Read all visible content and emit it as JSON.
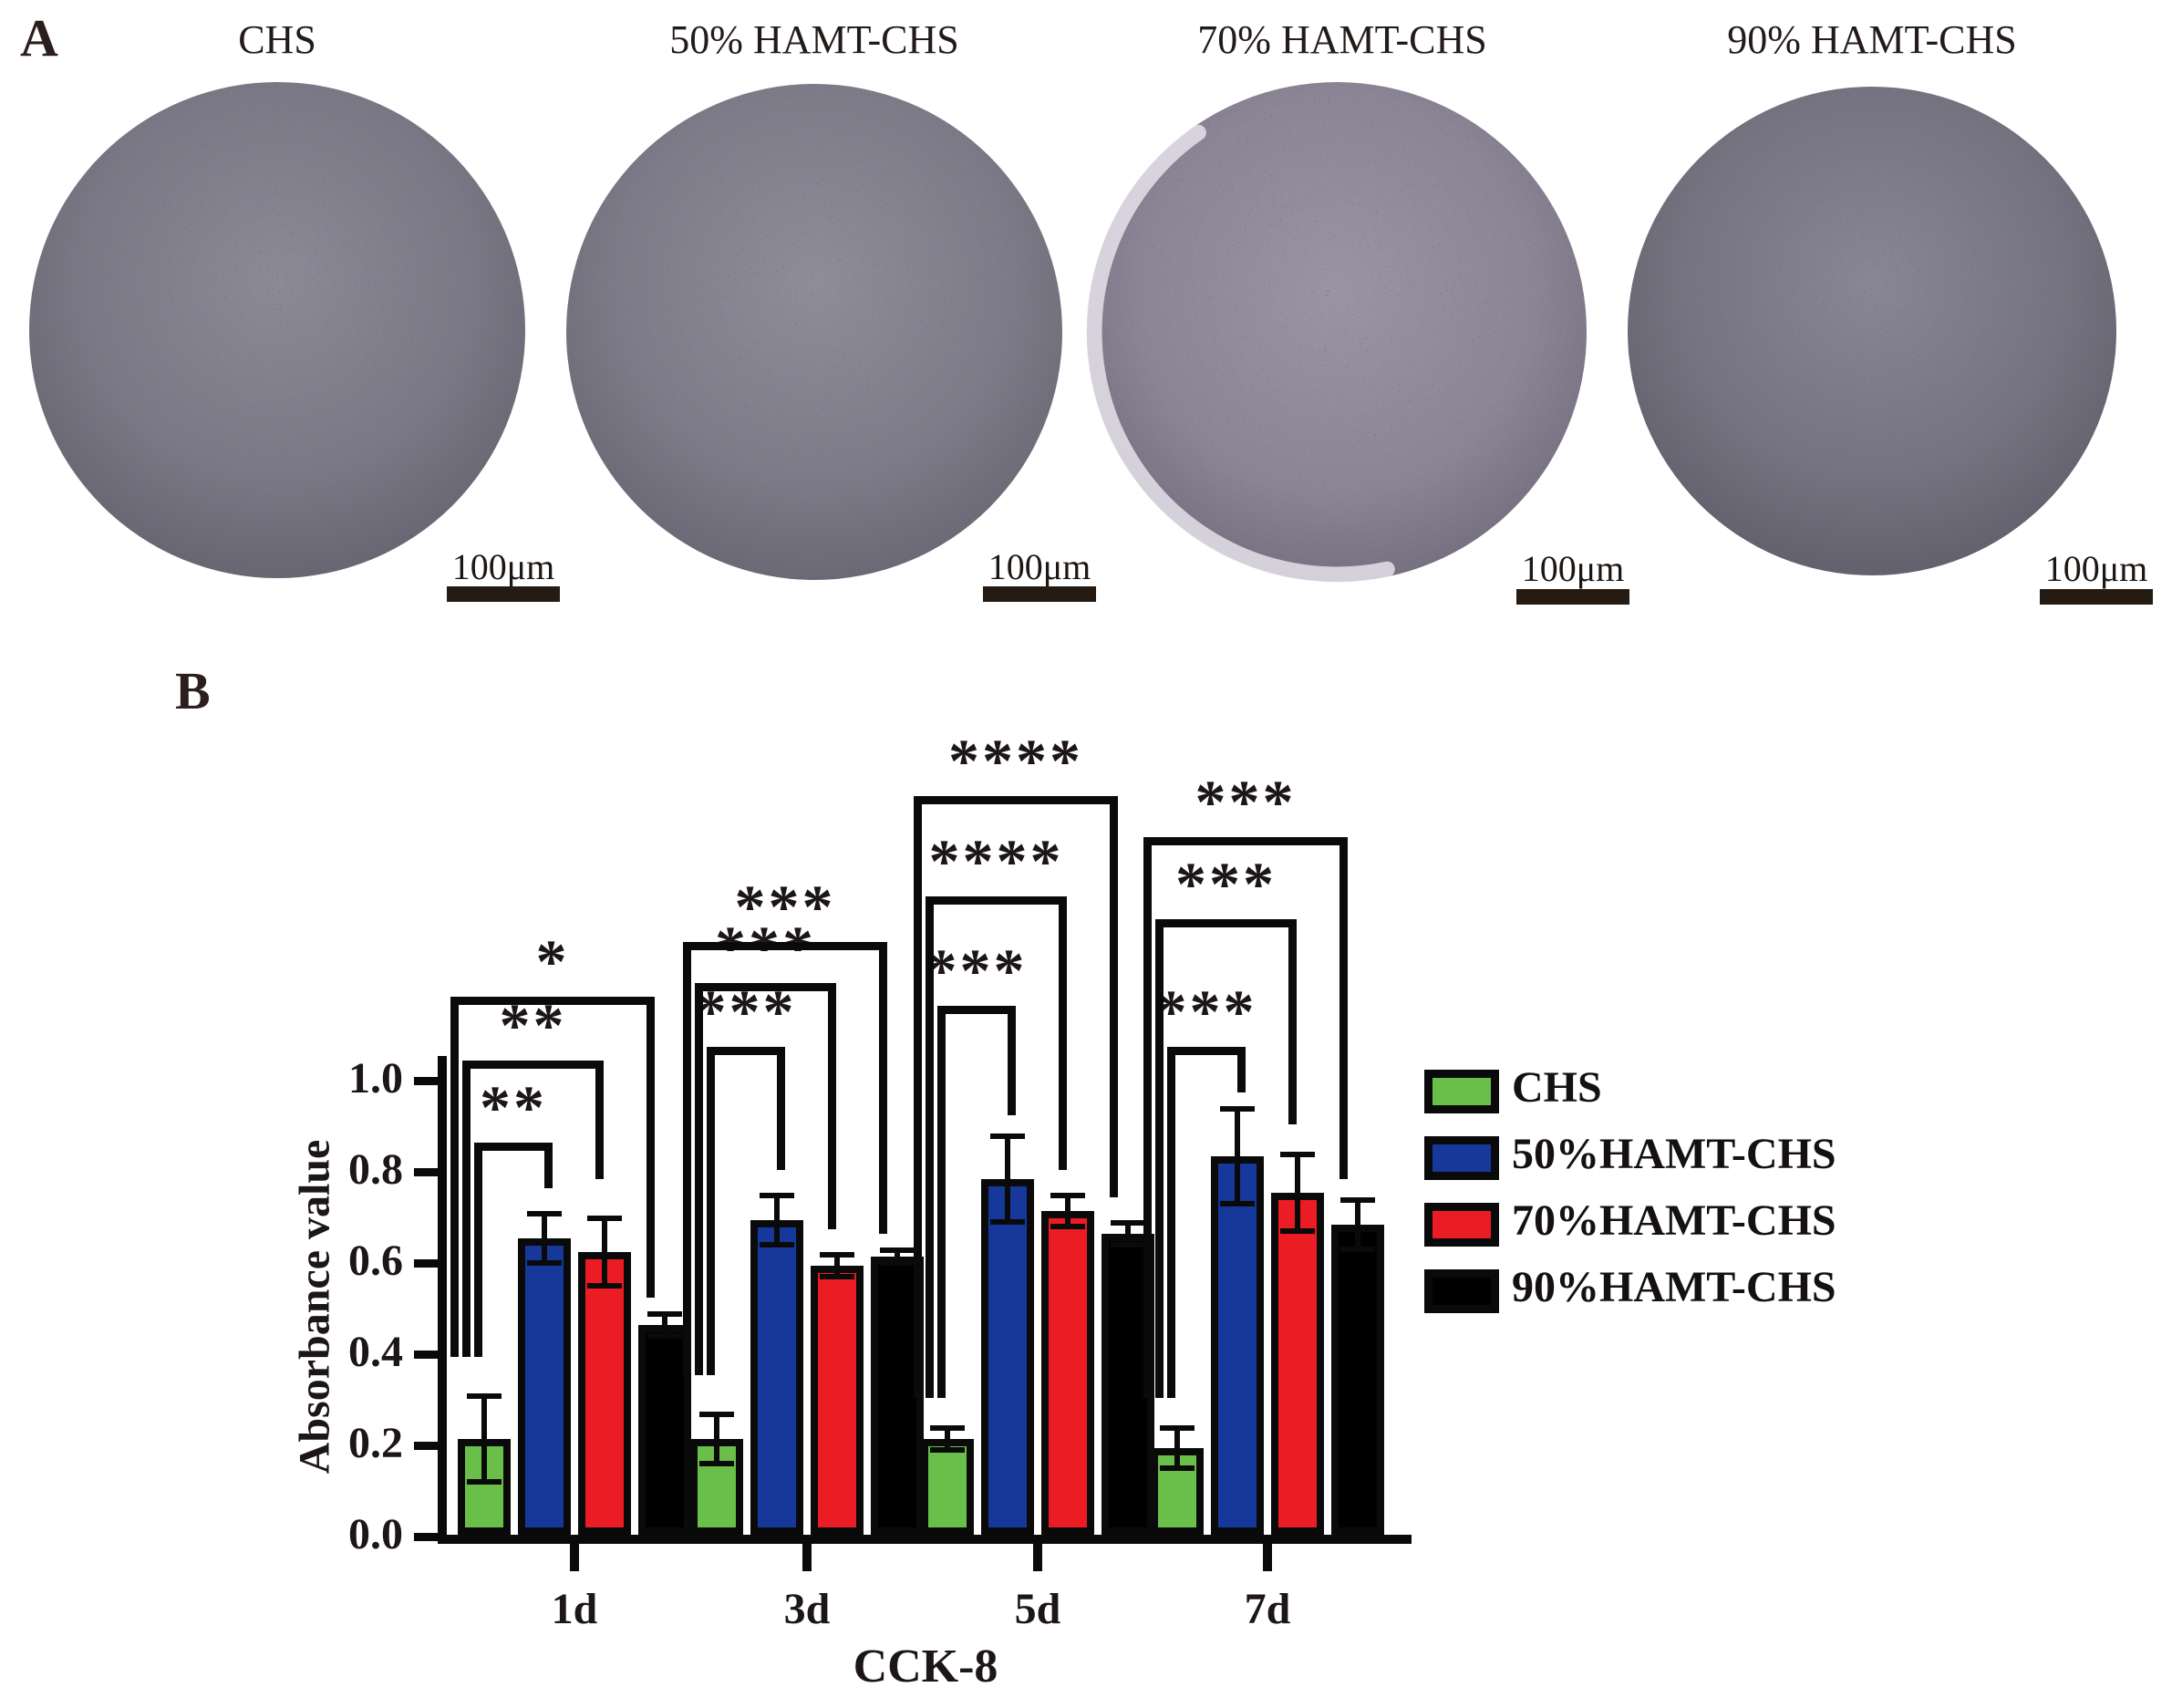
{
  "panel_a": {
    "label": "A",
    "wells": [
      {
        "title": "CHS",
        "scale_label": "100μm"
      },
      {
        "title": "50% HAMT-CHS",
        "scale_label": "100μm"
      },
      {
        "title": "70% HAMT-CHS",
        "scale_label": "100μm"
      },
      {
        "title": "90% HAMT-CHS",
        "scale_label": "100μm"
      }
    ]
  },
  "panel_b": {
    "label": "B"
  },
  "chart_data": {
    "type": "bar",
    "xlabel": "CCK-8",
    "ylabel": "Absorbance value",
    "categories": [
      "1d",
      "3d",
      "5d",
      "7d"
    ],
    "ylim": [
      0.0,
      1.0
    ],
    "yticks": [
      0.0,
      0.2,
      0.4,
      0.6,
      0.8,
      1.0
    ],
    "yticklabels": [
      "0.0",
      "0.2",
      "0.4",
      "0.6",
      "0.8",
      "1.0"
    ],
    "grid": false,
    "legend_position": "right",
    "series": [
      {
        "name": "CHS",
        "color": "#6abf4b",
        "values": [
          0.21,
          0.21,
          0.21,
          0.19
        ],
        "errors": [
          0.1,
          0.06,
          0.03,
          0.05
        ]
      },
      {
        "name": "50%HAMT-CHS",
        "color": "#16389b",
        "values": [
          0.65,
          0.69,
          0.78,
          0.83
        ],
        "errors": [
          0.06,
          0.06,
          0.1,
          0.11
        ]
      },
      {
        "name": "70%HAMT-CHS",
        "color": "#ec1c24",
        "values": [
          0.62,
          0.59,
          0.71,
          0.75
        ],
        "errors": [
          0.08,
          0.03,
          0.04,
          0.09
        ]
      },
      {
        "name": "90%HAMT-CHS",
        "color": "#000000",
        "values": [
          0.46,
          0.61,
          0.66,
          0.68
        ],
        "errors": [
          0.03,
          0.02,
          0.03,
          0.06
        ]
      }
    ],
    "significance": [
      {
        "category": "1d",
        "brackets": [
          {
            "from": 0,
            "to": 1,
            "label": "**",
            "top": 0.86,
            "left_drop": 0.39,
            "right_drop": 0.76
          },
          {
            "from": 0,
            "to": 2,
            "label": "**",
            "top": 1.04,
            "left_drop": 0.39,
            "right_drop": 0.78
          },
          {
            "from": 0,
            "to": 3,
            "label": "*",
            "top": 1.18,
            "left_drop": 0.39,
            "right_drop": 0.52
          }
        ]
      },
      {
        "category": "3d",
        "brackets": [
          {
            "from": 0,
            "to": 1,
            "label": "***",
            "top": 1.07,
            "left_drop": 0.35,
            "right_drop": 0.8
          },
          {
            "from": 0,
            "to": 2,
            "label": "***",
            "top": 1.21,
            "left_drop": 0.35,
            "right_drop": 0.67
          },
          {
            "from": 0,
            "to": 3,
            "label": "***",
            "top": 1.3,
            "left_drop": 0.35,
            "right_drop": 0.66
          }
        ]
      },
      {
        "category": "5d",
        "brackets": [
          {
            "from": 0,
            "to": 1,
            "label": "***",
            "top": 1.16,
            "left_drop": 0.3,
            "right_drop": 0.92
          },
          {
            "from": 0,
            "to": 2,
            "label": "****",
            "top": 1.4,
            "left_drop": 0.3,
            "right_drop": 0.8
          },
          {
            "from": 0,
            "to": 3,
            "label": "****",
            "top": 1.62,
            "left_drop": 0.3,
            "right_drop": 0.74
          }
        ]
      },
      {
        "category": "7d",
        "brackets": [
          {
            "from": 0,
            "to": 1,
            "label": "***",
            "top": 1.07,
            "left_drop": 0.3,
            "right_drop": 0.97
          },
          {
            "from": 0,
            "to": 2,
            "label": "***",
            "top": 1.35,
            "left_drop": 0.3,
            "right_drop": 0.9
          },
          {
            "from": 0,
            "to": 3,
            "label": "***",
            "top": 1.53,
            "left_drop": 0.3,
            "right_drop": 0.78
          }
        ]
      }
    ]
  }
}
